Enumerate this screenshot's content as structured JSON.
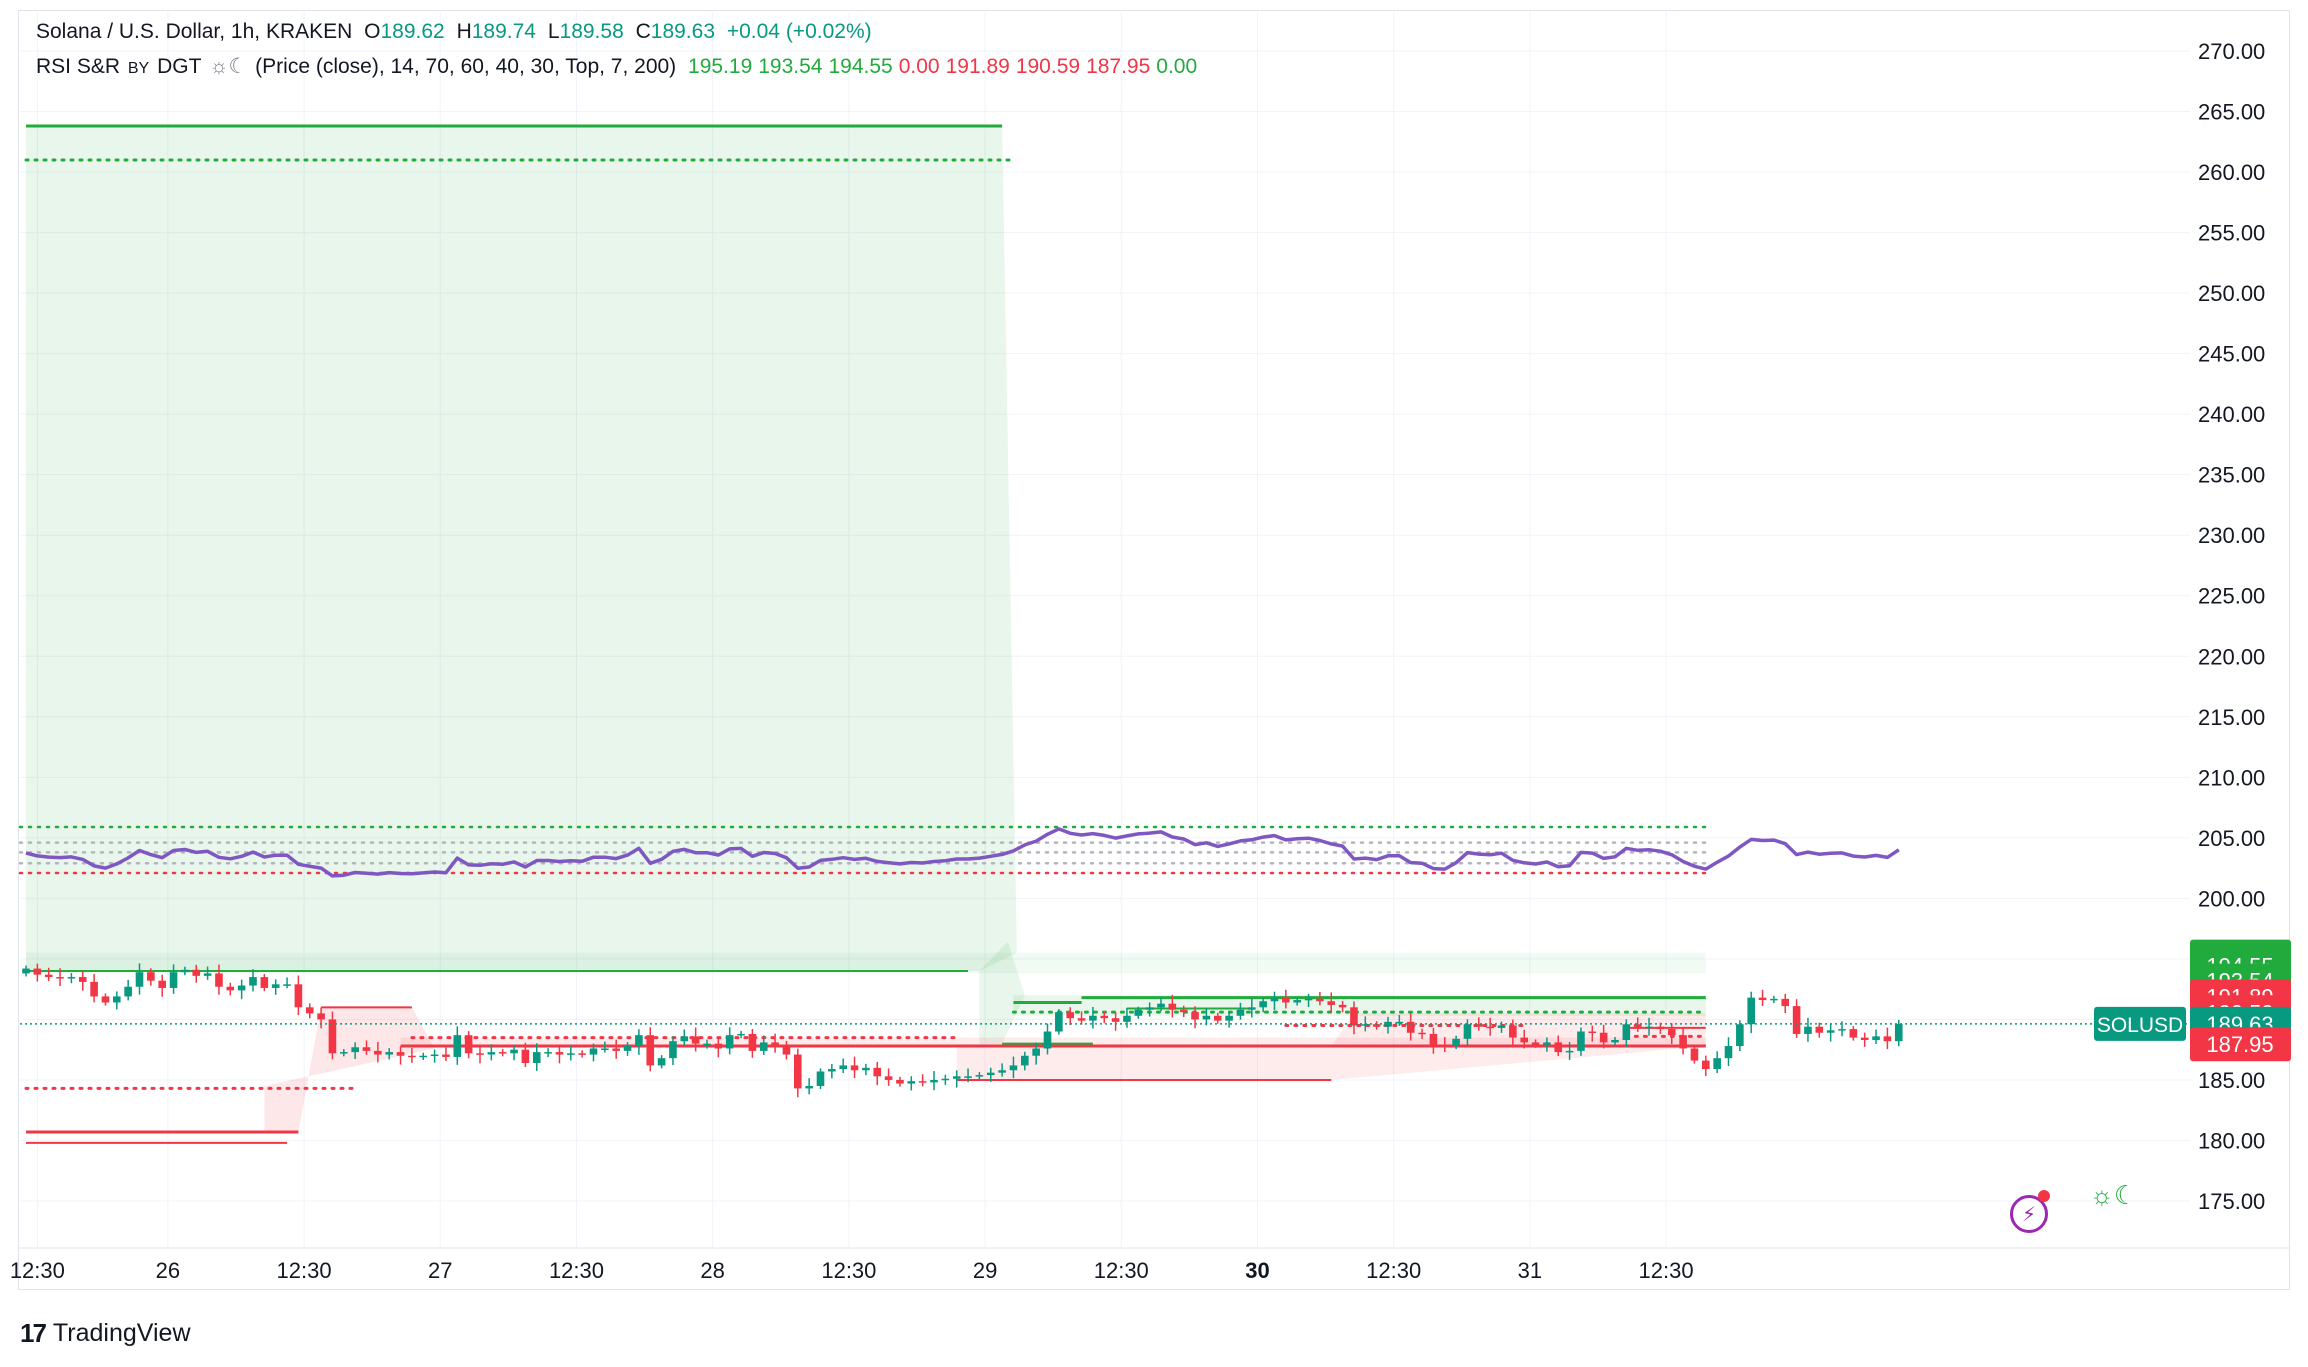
{
  "legend": {
    "symbol": "Solana / U.S. Dollar, 1h, KRAKEN",
    "o_label": "O",
    "o_val": "189.62",
    "h_label": "H",
    "h_val": "189.74",
    "l_label": "L",
    "l_val": "189.58",
    "c_label": "C",
    "c_val": "189.63",
    "change": "+0.04 (+0.02%)",
    "ind_name": "RSI S&R",
    "ind_by": "BY",
    "ind_author": "DGT",
    "ind_glyph": "☼☾",
    "ind_params": "(Price (close), 14, 70, 60, 40, 30, Top, 7, 200)",
    "ind_values": [
      {
        "text": "195.19",
        "color": "#22ab3d"
      },
      {
        "text": "193.54",
        "color": "#22ab3d"
      },
      {
        "text": "194.55",
        "color": "#22ab3d"
      },
      {
        "text": "0.00",
        "color": "#f23645"
      },
      {
        "text": "191.89",
        "color": "#f23645"
      },
      {
        "text": "190.59",
        "color": "#f23645"
      },
      {
        "text": "187.95",
        "color": "#f23645"
      },
      {
        "text": "0.00",
        "color": "#22ab3d"
      }
    ]
  },
  "colors": {
    "up": "#089981",
    "down": "#f23645",
    "green": "#22ab3d",
    "red": "#f23645",
    "rsi": "#7e57c2",
    "axis_text": "#131722",
    "grid": "#f0f3fa"
  },
  "chart_data": {
    "type": "candlestick",
    "y_axis": {
      "min": 172,
      "max": 272,
      "ticks": [
        "175.00",
        "180.00",
        "185.00",
        "190.00",
        "195.00",
        "200.00",
        "205.00",
        "210.00",
        "215.00",
        "220.00",
        "225.00",
        "230.00",
        "235.00",
        "240.00",
        "245.00",
        "250.00",
        "255.00",
        "260.00",
        "265.00",
        "270.00"
      ]
    },
    "x_axis": {
      "labels": [
        {
          "text": "12:30",
          "i": 1,
          "bold": false
        },
        {
          "text": "26",
          "i": 12.5,
          "bold": false
        },
        {
          "text": "12:30",
          "i": 24.5,
          "bold": false
        },
        {
          "text": "27",
          "i": 36.5,
          "bold": false
        },
        {
          "text": "12:30",
          "i": 48.5,
          "bold": false
        },
        {
          "text": "28",
          "i": 60.5,
          "bold": false
        },
        {
          "text": "12:30",
          "i": 72.5,
          "bold": false
        },
        {
          "text": "29",
          "i": 84.5,
          "bold": false
        },
        {
          "text": "12:30",
          "i": 96.5,
          "bold": false
        },
        {
          "text": "30",
          "i": 108.5,
          "bold": true
        },
        {
          "text": "12:30",
          "i": 120.5,
          "bold": false
        },
        {
          "text": "31",
          "i": 132.5,
          "bold": false
        },
        {
          "text": "12:30",
          "i": 144.5,
          "bold": false
        }
      ]
    },
    "close": [
      194.2,
      193.7,
      193.5,
      193.4,
      193.5,
      193.1,
      191.9,
      191.4,
      191.9,
      192.7,
      193.9,
      193.2,
      192.6,
      193.9,
      194.1,
      193.6,
      193.8,
      192.7,
      192.4,
      192.8,
      193.5,
      192.6,
      192.9,
      192.9,
      191.0,
      190.5,
      190.0,
      187.2,
      187.3,
      187.7,
      187.4,
      187.1,
      187.3,
      187.0,
      186.9,
      187.0,
      187.1,
      186.9,
      188.7,
      187.2,
      187.1,
      187.3,
      187.2,
      187.5,
      186.4,
      187.3,
      187.3,
      187.1,
      187.2,
      187.1,
      187.6,
      187.6,
      187.4,
      187.8,
      188.7,
      186.2,
      186.8,
      188.2,
      188.6,
      188.0,
      188.0,
      187.6,
      188.7,
      188.8,
      187.4,
      188.1,
      187.9,
      187.1,
      184.3,
      184.5,
      185.7,
      185.9,
      186.2,
      185.8,
      186.0,
      185.3,
      185.0,
      184.7,
      184.9,
      184.8,
      185.0,
      185.1,
      185.3,
      185.3,
      185.4,
      185.6,
      185.8,
      186.2,
      187.0,
      187.6,
      189.0,
      190.6,
      190.1,
      189.9,
      190.3,
      190.1,
      189.8,
      190.3,
      190.8,
      191.0,
      191.3,
      190.8,
      190.6,
      190.0,
      190.3,
      189.9,
      190.3,
      190.8,
      191.0,
      191.5,
      191.8,
      191.4,
      191.6,
      191.7,
      191.5,
      191.2,
      191.0,
      189.5,
      189.6,
      189.4,
      189.8,
      189.8,
      188.9,
      188.8,
      187.9,
      187.8,
      188.4,
      189.6,
      189.4,
      189.3,
      189.5,
      188.5,
      188.1,
      187.9,
      188.1,
      187.3,
      187.4,
      189.0,
      188.9,
      188.1,
      188.3,
      189.6,
      189.3,
      189.4,
      189.2,
      188.7,
      187.6,
      186.6,
      185.9,
      186.8,
      187.8,
      189.6,
      191.8,
      191.6,
      191.7,
      191.1,
      188.8,
      189.4,
      188.9,
      189.1,
      189.2,
      188.5,
      188.3,
      188.6,
      188.2,
      189.63
    ]
  },
  "levels": [
    {
      "y": 263.8,
      "i0": 0,
      "i1": 86,
      "color": "#22ab3d",
      "style": "solid",
      "w": 3
    },
    {
      "y": 261.0,
      "i0": 0,
      "i1": 87,
      "color": "#22ab3d",
      "style": "dotted",
      "w": 3
    },
    {
      "y": 194.0,
      "i0": 0,
      "i1": 83,
      "color": "#22ab3d",
      "style": "solid",
      "w": 2
    },
    {
      "y": 184.3,
      "i0": 0,
      "i1": 29,
      "color": "#f23645",
      "style": "dotted",
      "w": 3
    },
    {
      "y": 180.7,
      "i0": 0,
      "i1": 24,
      "color": "#f23645",
      "style": "solid",
      "w": 3
    },
    {
      "y": 179.8,
      "i0": 0,
      "i1": 23,
      "color": "#f23645",
      "style": "solid",
      "w": 2
    },
    {
      "y": 191.0,
      "i0": 26,
      "i1": 34,
      "color": "#f23645",
      "style": "solid",
      "w": 2
    },
    {
      "y": 188.5,
      "i0": 34,
      "i1": 82,
      "color": "#f23645",
      "style": "dotted",
      "w": 3
    },
    {
      "y": 187.8,
      "i0": 33,
      "i1": 148,
      "color": "#f23645",
      "style": "solid",
      "w": 3
    },
    {
      "y": 185.0,
      "i0": 82,
      "i1": 115,
      "color": "#f23645",
      "style": "solid",
      "w": 2
    },
    {
      "y": 188.0,
      "i0": 86,
      "i1": 94,
      "color": "#22ab3d",
      "style": "solid",
      "w": 2
    },
    {
      "y": 190.6,
      "i0": 87,
      "i1": 148,
      "color": "#22ab3d",
      "style": "dotted",
      "w": 3
    },
    {
      "y": 191.8,
      "i0": 93,
      "i1": 148,
      "color": "#22ab3d",
      "style": "solid",
      "w": 3
    },
    {
      "y": 191.4,
      "i0": 87,
      "i1": 93,
      "color": "#22ab3d",
      "style": "solid",
      "w": 3
    },
    {
      "y": 190.9,
      "i0": 97,
      "i1": 108,
      "color": "#22ab3d",
      "style": "solid",
      "w": 2
    },
    {
      "y": 189.5,
      "i0": 111,
      "i1": 132,
      "color": "#f23645",
      "style": "dotted",
      "w": 3
    },
    {
      "y": 189.3,
      "i0": 141,
      "i1": 148,
      "color": "#f23645",
      "style": "solid",
      "w": 2
    },
    {
      "y": 188.6,
      "i0": 141,
      "i1": 148,
      "color": "#f23645",
      "style": "dotted",
      "w": 3
    }
  ],
  "price_labels": [
    {
      "text": "195.19",
      "y": 195.19,
      "bg": "#22ab3d"
    },
    {
      "text": "194.55",
      "y": 194.45,
      "bg": "#22ab3d"
    },
    {
      "text": "193.54",
      "y": 193.2,
      "bg": "#22ab3d"
    },
    {
      "text": "191.89",
      "y": 191.89,
      "bg": "#f23645"
    },
    {
      "text": "190.59",
      "y": 190.59,
      "bg": "#f23645"
    },
    {
      "text": "189.63",
      "y": 189.63,
      "bg": "#089981",
      "tag": "SOLUSD"
    },
    {
      "text": "187.95",
      "y": 187.95,
      "bg": "#f23645"
    }
  ],
  "branding": {
    "logo_mark": "17",
    "logo_text": "TradingView",
    "sun_moon": "☼☾",
    "bolt": "⚡"
  }
}
